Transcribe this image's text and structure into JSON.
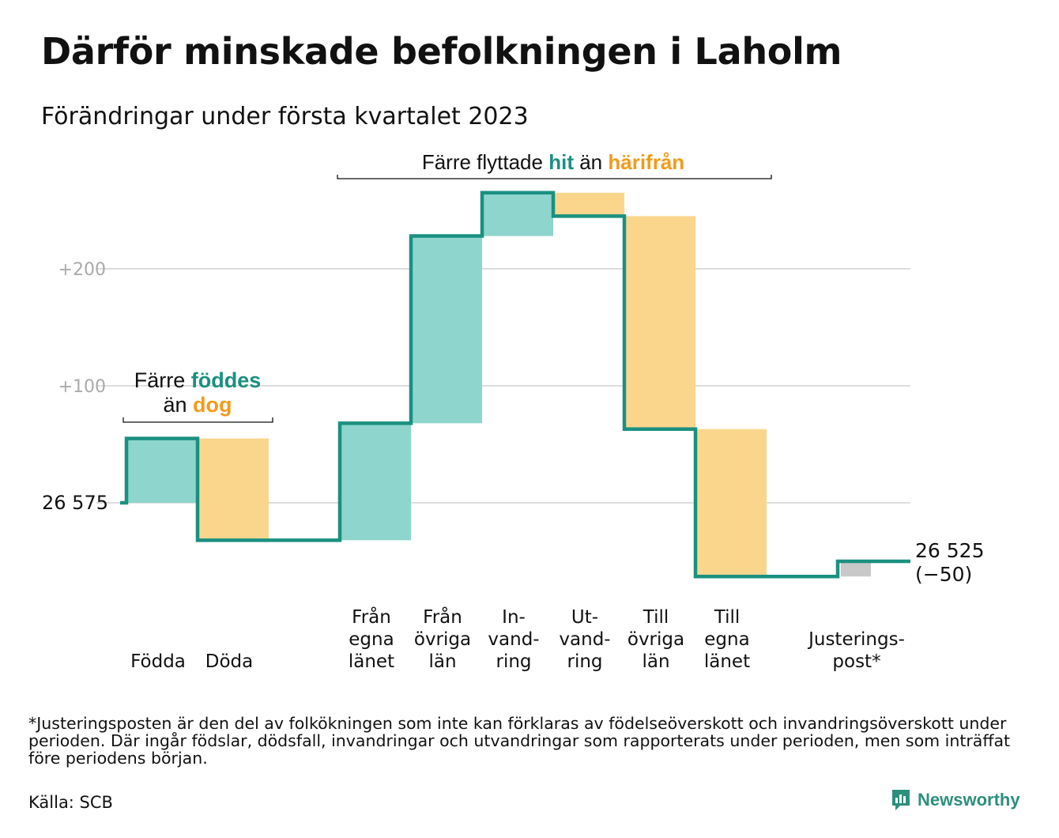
{
  "title": "Därför minskade befolkningen i Laholm",
  "subtitle": "Förändringar under första kvartalet 2023",
  "colors": {
    "inflow": "#8dd5cd",
    "outflow": "#fad68d",
    "adjustment": "#c8c8c8",
    "line": "#1a9080",
    "inflow_text": "#1a9080",
    "outflow_text": "#f29b1a",
    "grid": "#dddddd",
    "tick_text": "#aaaaaa"
  },
  "chart_data": {
    "type": "waterfall",
    "start_value": 26575,
    "start_label": "26 575",
    "end_value": 26525,
    "end_label": "26 525",
    "end_change_label": "(−50)",
    "ylabel": "",
    "y_ticks": [
      {
        "value": 26675,
        "label": "+100"
      },
      {
        "value": 26775,
        "label": "+200"
      }
    ],
    "grid": true,
    "steps": [
      {
        "category": "Födda",
        "label_lines": [
          "Födda"
        ],
        "value": 55,
        "kind": "inflow"
      },
      {
        "category": "Döda",
        "label_lines": [
          "Döda"
        ],
        "value": -87,
        "kind": "outflow"
      },
      {
        "category": "",
        "label_lines": [],
        "value": 0,
        "kind": "gap"
      },
      {
        "category": "Från egna länet",
        "label_lines": [
          "Från",
          "egna",
          "länet"
        ],
        "value": 100,
        "kind": "inflow"
      },
      {
        "category": "Från övriga län",
        "label_lines": [
          "Från",
          "övriga",
          "län"
        ],
        "value": 160,
        "kind": "inflow"
      },
      {
        "category": "Invandring",
        "label_lines": [
          "In-",
          "vand-",
          "ring"
        ],
        "value": 37,
        "kind": "inflow"
      },
      {
        "category": "Utvandring",
        "label_lines": [
          "Ut-",
          "vand-",
          "ring"
        ],
        "value": -20,
        "kind": "outflow"
      },
      {
        "category": "Till övriga län",
        "label_lines": [
          "Till",
          "övriga",
          "län"
        ],
        "value": -182,
        "kind": "outflow"
      },
      {
        "category": "Till egna länet",
        "label_lines": [
          "Till",
          "egna",
          "länet"
        ],
        "value": -126,
        "kind": "outflow"
      },
      {
        "category": "",
        "label_lines": [],
        "value": 0,
        "kind": "gap"
      },
      {
        "category": "Justeringspost*",
        "label_lines": [
          "Justerings-",
          "post*"
        ],
        "value": 13,
        "kind": "adjustment"
      }
    ],
    "annotations": [
      {
        "parts": [
          {
            "text": "Färre ",
            "style": "plain"
          },
          {
            "text": "föddes",
            "style": "inflow"
          }
        ],
        "line2": [
          {
            "text": "än ",
            "style": "plain"
          },
          {
            "text": "dog",
            "style": "outflow"
          }
        ]
      },
      {
        "parts": [
          {
            "text": "Färre flyttade ",
            "style": "plain"
          },
          {
            "text": "hit",
            "style": "inflow"
          },
          {
            "text": " än ",
            "style": "plain"
          },
          {
            "text": "härifrån",
            "style": "outflow"
          }
        ]
      }
    ]
  },
  "footnote": "*Justeringsposten är den del av folkökningen som inte kan förklaras av födelseöverskott och invandringsöverskott under perioden. Där ingår födslar, dödsfall, invandringar och utvandringar som rapporterats under perioden, men som inträffat före periodens början.",
  "source": "Källa: SCB",
  "brand": {
    "name": "Newsworthy",
    "icon": "newsworthy-logo-icon"
  }
}
